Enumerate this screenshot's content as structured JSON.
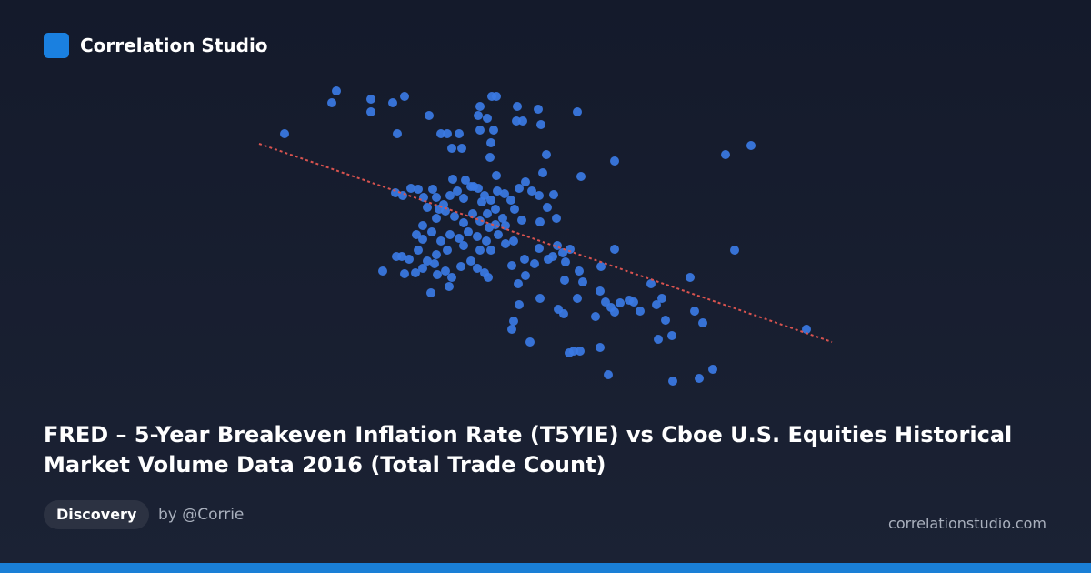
{
  "header": {
    "brand": "Correlation Studio"
  },
  "chart_data": {
    "type": "scatter",
    "xlim": [
      0,
      640
    ],
    "ylim": [
      0,
      340
    ],
    "series": [
      {
        "color": "#3b7ae4",
        "x": [
          33,
          85,
          90,
          128,
          128,
          152,
          165,
          192,
          157,
          205,
          212,
          225,
          217,
          228,
          248,
          246,
          256,
          248,
          263,
          261,
          266,
          289,
          312,
          288,
          295,
          315,
          355,
          260,
          259,
          321,
          396,
          518,
          546,
          317,
          359,
          266,
          218,
          241,
          528,
          396,
          479,
          607,
          155,
          163,
          172,
          180,
          186,
          196,
          200,
          208,
          215,
          223,
          230,
          238,
          246,
          253,
          260,
          267,
          275,
          282,
          291,
          298,
          305,
          313,
          329,
          314,
          332,
          322,
          294,
          286,
          273,
          265,
          256,
          248,
          240,
          230,
          220,
          210,
          200,
          190,
          185,
          178,
          185,
          195,
          205,
          215,
          225,
          235,
          245,
          255,
          268,
          276,
          285,
          260,
          248,
          230,
          212,
          200,
          190,
          180,
          170,
          156,
          162,
          141,
          165,
          177,
          185,
          198,
          210,
          217,
          227,
          238,
          245,
          253,
          257,
          201,
          214,
          194,
          283,
          297,
          308,
          323,
          333,
          339,
          347,
          313,
          328,
          342,
          357,
          381,
          361,
          341,
          290,
          298,
          314,
          291,
          334,
          340,
          285,
          283,
          303,
          355,
          375,
          380,
          386,
          396,
          402,
          412,
          417,
          392,
          424,
          436,
          442,
          448,
          452,
          444,
          459,
          484,
          493,
          346,
          351,
          358,
          380,
          389,
          460,
          489,
          504,
          203,
          250,
          265,
          232,
          276,
          258
        ],
        "y": [
          283,
          317,
          330,
          321,
          307,
          317,
          324,
          303,
          283,
          283,
          283,
          283,
          267,
          267,
          313,
          303,
          300,
          287,
          287,
          324,
          324,
          313,
          310,
          297,
          297,
          293,
          307,
          273,
          257,
          260,
          253,
          260,
          270,
          240,
          236,
          237,
          233,
          225,
          155,
          156,
          125,
          68,
          218,
          215,
          223,
          222,
          213,
          222,
          213,
          205,
          215,
          220,
          212,
          225,
          223,
          215,
          210,
          220,
          217,
          210,
          223,
          230,
          220,
          215,
          216,
          186,
          190,
          202,
          188,
          200,
          190,
          183,
          195,
          187,
          195,
          185,
          192,
          198,
          190,
          202,
          182,
          172,
          167,
          175,
          165,
          172,
          168,
          175,
          170,
          165,
          172,
          162,
          165,
          155,
          155,
          160,
          155,
          150,
          143,
          155,
          145,
          148,
          148,
          132,
          129,
          130,
          135,
          140,
          132,
          125,
          137,
          143,
          135,
          130,
          125,
          128,
          115,
          108,
          138,
          145,
          140,
          145,
          160,
          152,
          156,
          157,
          148,
          142,
          132,
          137,
          120,
          122,
          118,
          127,
          102,
          95,
          90,
          85,
          77,
          68,
          54,
          102,
          82,
          110,
          98,
          87,
          97,
          100,
          98,
          92,
          88,
          118,
          95,
          102,
          78,
          57,
          61,
          88,
          75,
          42,
          44,
          44,
          48,
          18,
          11,
          14,
          24,
          200,
          208,
          200,
          232,
          182,
          180
        ]
      }
    ],
    "trendline": {
      "color": "#d9534f",
      "x": [
        5,
        635
      ],
      "y": [
        272,
        54
      ]
    }
  },
  "title": "FRED – 5-Year Breakeven Inflation Rate (T5YIE) vs Cboe U.S. Equities Historical Market Volume Data 2016 (Total Trade Count)",
  "tag": "Discovery",
  "author": "by @Corrie",
  "site": "correlationstudio.com"
}
